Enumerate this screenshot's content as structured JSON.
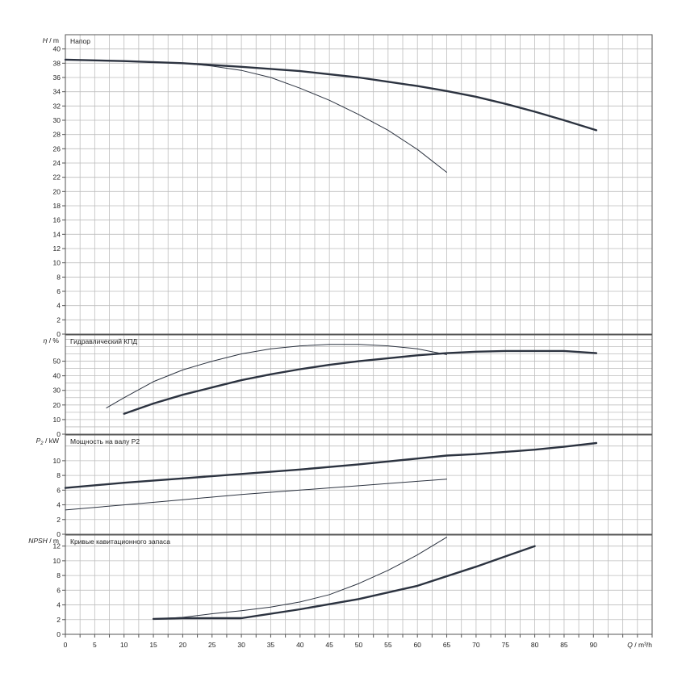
{
  "chart_data": [
    {
      "type": "line",
      "title": "Напор",
      "ylabel_sym": "H",
      "ylabel_unit": "m",
      "ylim": [
        0,
        42
      ],
      "yticks": [
        0,
        2,
        4,
        6,
        8,
        10,
        12,
        14,
        16,
        18,
        20,
        22,
        24,
        26,
        28,
        30,
        32,
        34,
        36,
        38,
        40
      ],
      "grid": true,
      "series": [
        {
          "style": "thick",
          "x": [
            0,
            10,
            20,
            30,
            40,
            50,
            55,
            60,
            65,
            70,
            75,
            80,
            85,
            90.5
          ],
          "y": [
            38.5,
            38.3,
            38.0,
            37.5,
            36.9,
            36.0,
            35.4,
            34.8,
            34.1,
            33.3,
            32.3,
            31.2,
            30.0,
            28.6
          ]
        },
        {
          "style": "thin",
          "x": [
            0,
            10,
            20,
            25,
            30,
            35,
            40,
            45,
            50,
            55,
            60,
            65
          ],
          "y": [
            38.5,
            38.3,
            38.0,
            37.6,
            37.0,
            36.0,
            34.5,
            32.8,
            30.8,
            28.6,
            25.9,
            22.7
          ]
        }
      ]
    },
    {
      "type": "line",
      "title": "Гидравлический КПД",
      "ylabel_sym": "η",
      "ylabel_unit": "%",
      "ylim": [
        0,
        68
      ],
      "yticks": [
        0,
        10,
        20,
        30,
        40,
        50
      ],
      "grid": true,
      "series": [
        {
          "style": "thick",
          "x": [
            10,
            15,
            20,
            25,
            30,
            35,
            40,
            45,
            50,
            55,
            60,
            65,
            70,
            75,
            80,
            85,
            90.5
          ],
          "y": [
            14,
            21,
            27,
            32,
            37,
            41,
            44.5,
            47.5,
            50,
            52,
            54,
            55.5,
            56.5,
            57,
            57,
            57,
            55.5
          ]
        },
        {
          "style": "thin",
          "x": [
            7,
            10,
            15,
            20,
            25,
            30,
            35,
            40,
            45,
            50,
            55,
            60,
            65
          ],
          "y": [
            18,
            25,
            36,
            44,
            50,
            55,
            58.5,
            60.5,
            61.5,
            61.5,
            60.5,
            58.5,
            54.5
          ]
        }
      ]
    },
    {
      "type": "line",
      "title": "Мощность на валу P2",
      "ylabel_sym": "P",
      "ylabel_sub": "2",
      "ylabel_unit": "kW",
      "ylim": [
        0,
        13.5
      ],
      "yticks": [
        0,
        2,
        4,
        6,
        8,
        10
      ],
      "grid": true,
      "series": [
        {
          "style": "thick",
          "x": [
            0,
            10,
            20,
            30,
            40,
            50,
            60,
            65,
            70,
            80,
            85,
            90.5
          ],
          "y": [
            6.3,
            7.0,
            7.6,
            8.2,
            8.8,
            9.5,
            10.3,
            10.7,
            10.9,
            11.5,
            11.9,
            12.4
          ]
        },
        {
          "style": "thin",
          "x": [
            0,
            10,
            20,
            30,
            40,
            50,
            60,
            65
          ],
          "y": [
            3.3,
            4.0,
            4.7,
            5.4,
            6.0,
            6.6,
            7.2,
            7.5
          ]
        }
      ]
    },
    {
      "type": "line",
      "title": "Кривые кавитационного запаса",
      "ylabel_sym": "NPSH",
      "ylabel_unit": "m",
      "ylim": [
        0,
        13.5
      ],
      "yticks": [
        0,
        2,
        4,
        6,
        8,
        10,
        12
      ],
      "xlabel_sym": "Q",
      "xlabel_unit": "m³/h",
      "xlim": [
        0,
        100
      ],
      "xticks": [
        0,
        5,
        10,
        15,
        20,
        25,
        30,
        35,
        40,
        45,
        50,
        55,
        60,
        65,
        70,
        75,
        80,
        85,
        90
      ],
      "grid": true,
      "series": [
        {
          "style": "thick",
          "x": [
            15,
            20,
            25,
            30,
            40,
            50,
            60,
            70,
            80
          ],
          "y": [
            2.1,
            2.2,
            2.2,
            2.2,
            3.4,
            4.8,
            6.6,
            9.2,
            12.0
          ]
        },
        {
          "style": "thin",
          "x": [
            15,
            20,
            25,
            30,
            35,
            40,
            45,
            50,
            55,
            60,
            65
          ],
          "y": [
            2.1,
            2.3,
            2.8,
            3.2,
            3.7,
            4.4,
            5.4,
            6.9,
            8.7,
            10.8,
            13.2
          ]
        }
      ]
    }
  ]
}
